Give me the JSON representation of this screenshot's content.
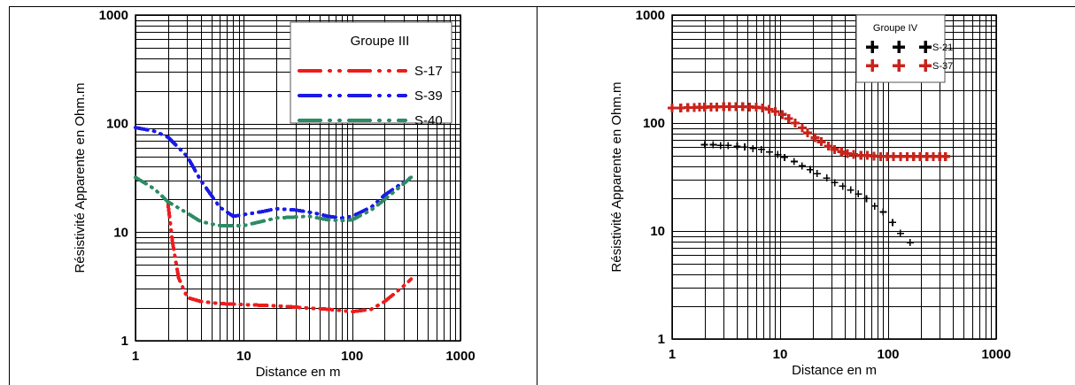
{
  "colors": {
    "red": "#ee1c1c",
    "blue": "#1a1ae6",
    "green": "#2e8b66",
    "black": "#000000",
    "dark_red": "#c8241c",
    "grid": "#000000"
  },
  "chart_data": [
    {
      "type": "line",
      "scale": "log-log",
      "xlabel": "Distance en m",
      "ylabel": "Résistivité Apparente en Ohm.m",
      "xlim": [
        1,
        1000
      ],
      "ylim": [
        1,
        1000
      ],
      "x_ticks": [
        "1",
        "10",
        "100",
        "1000"
      ],
      "y_ticks": [
        "1",
        "10",
        "100",
        "1000"
      ],
      "grid": true,
      "legend": {
        "title": "Groupe III",
        "position": "top-right"
      },
      "series": [
        {
          "name": "S-17",
          "color": "red",
          "style": "dash-dot-dot",
          "x": [
            2.0,
            2.2,
            2.5,
            3.0,
            4.0,
            6,
            10,
            20,
            40,
            60,
            100,
            150,
            200,
            300,
            350
          ],
          "y": [
            18,
            8,
            3.8,
            2.5,
            2.3,
            2.2,
            2.15,
            2.1,
            2.0,
            1.95,
            1.85,
            1.95,
            2.3,
            3.2,
            3.7
          ]
        },
        {
          "name": "S-39",
          "color": "blue",
          "style": "dash-dot-dot",
          "x": [
            1,
            1.5,
            2,
            3,
            4,
            6,
            8,
            10,
            15,
            20,
            30,
            45,
            60,
            80,
            100,
            150,
            200,
            300,
            350
          ],
          "y": [
            92,
            85,
            75,
            50,
            30,
            17,
            14,
            14.5,
            15.5,
            16.5,
            16,
            15,
            14,
            13.5,
            14,
            17,
            22,
            29,
            32
          ]
        },
        {
          "name": "S-40",
          "color": "green",
          "style": "dash-dot-dot",
          "x": [
            1,
            1.5,
            2,
            3,
            4,
            6,
            10,
            20,
            40,
            60,
            80,
            100,
            150,
            200,
            300,
            350
          ],
          "y": [
            32,
            25,
            19,
            15,
            12.5,
            11.5,
            11.5,
            13.5,
            14,
            13,
            12.8,
            13,
            16,
            20,
            28,
            32
          ]
        }
      ]
    },
    {
      "type": "scatter",
      "scale": "log-log",
      "xlabel": "Distance en m",
      "ylabel": "Résistivité Apparente en Ohm.m",
      "xlim": [
        1,
        1000
      ],
      "ylim": [
        1,
        1000
      ],
      "x_ticks": [
        "1",
        "10",
        "100",
        "1000"
      ],
      "y_ticks": [
        "1",
        "10",
        "100",
        "1000"
      ],
      "grid": true,
      "legend": {
        "title": "Groupe IV",
        "position": "top-right"
      },
      "series": [
        {
          "name": "S-21",
          "color": "black",
          "marker": "plus",
          "x": [
            2,
            2.4,
            2.8,
            3.3,
            4,
            4.7,
            5.6,
            6.7,
            8,
            9.5,
            11,
            13.5,
            16,
            19,
            22,
            27,
            32,
            38,
            45,
            53,
            63,
            75,
            90,
            110,
            130,
            160
          ],
          "y": [
            63,
            63,
            62,
            62,
            61,
            60,
            58,
            57,
            54,
            51,
            48,
            44,
            40,
            37,
            34,
            31,
            28,
            26,
            24,
            22,
            20,
            17,
            15,
            12,
            9.5,
            7.8
          ]
        },
        {
          "name": "S-37",
          "color": "dark_red",
          "marker": "plus",
          "x": [
            1,
            1.2,
            1.4,
            1.6,
            1.8,
            2,
            2.3,
            2.6,
            3,
            3.4,
            3.9,
            4.5,
            5.2,
            6,
            6.9,
            7.9,
            9,
            10.5,
            12,
            13.8,
            16,
            18,
            21,
            24,
            28,
            32,
            37,
            42,
            48,
            56,
            64,
            74,
            85,
            98,
            112,
            130,
            150,
            172,
            198,
            228,
            262,
            300,
            340
          ],
          "y": [
            138,
            138,
            139,
            139,
            140,
            140,
            141,
            141,
            142,
            142,
            142,
            142,
            141,
            140,
            138,
            134,
            128,
            120,
            110,
            100,
            90,
            81,
            73,
            67,
            61,
            57,
            54,
            52,
            51,
            50,
            50,
            49.5,
            49,
            49,
            49,
            49,
            49,
            49,
            49,
            49,
            49,
            49,
            49
          ]
        }
      ]
    }
  ]
}
